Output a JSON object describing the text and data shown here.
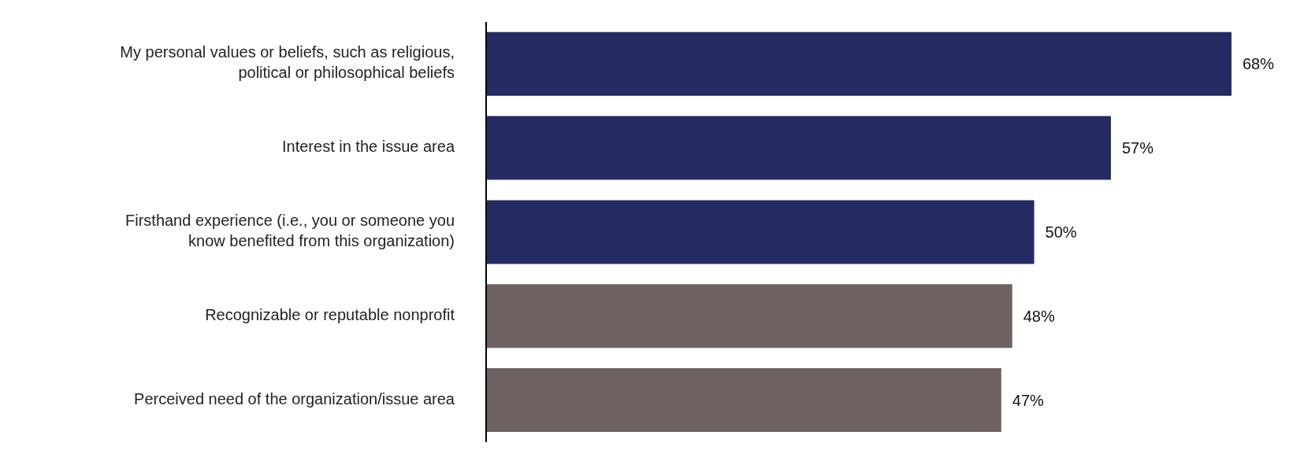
{
  "chart_data": {
    "type": "bar",
    "orientation": "horizontal",
    "tick_labels": "y",
    "grid": false,
    "legend": false,
    "categories": [
      "My personal values or beliefs, such as religious, political or philosophical beliefs",
      "Interest in the issue area",
      "Firsthand experience (i.e., you or someone you know benefited from this organization)",
      "Recognizable or reputable nonprofit",
      "Perceived need of the organization/issue area"
    ],
    "values": [
      68,
      57,
      50,
      48,
      47
    ],
    "value_labels": [
      "68%",
      "57%",
      "50%",
      "48%",
      "47%"
    ],
    "colors": [
      "#232b62",
      "#232b62",
      "#232b62",
      "#6e6262",
      "#6e6262"
    ]
  }
}
